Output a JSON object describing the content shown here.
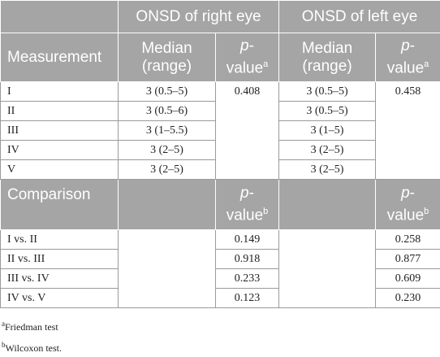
{
  "table": {
    "group_headers": [
      "ONSD of right eye",
      "ONSD of left eye"
    ],
    "sub_headers": {
      "measurement": "Measurement",
      "median": "Median (range)",
      "p_value_a": {
        "italic": "p",
        "text": "-value",
        "sup": "a"
      }
    },
    "rows": [
      [
        "I",
        "3 (0.5–5)",
        "3 (0.5–5)"
      ],
      [
        "II",
        "3 (0.5–6)",
        "3 (0.5–5)"
      ],
      [
        "III",
        "3 (1–5.5)",
        "3 (1–5)"
      ],
      [
        "IV",
        "3 (2–5)",
        "3 (2–5)"
      ],
      [
        "V",
        "3 (2–5)",
        "3 (2–5)"
      ]
    ],
    "friedman_p": [
      "0.408",
      "0.458"
    ],
    "comparison_header": {
      "label": "Comparison",
      "p_value_b": {
        "italic": "p",
        "text": "-value",
        "sup": "b"
      }
    },
    "comparisons": [
      [
        "I vs. II",
        "0.149",
        "0.258"
      ],
      [
        "II vs. III",
        "0.918",
        "0.877"
      ],
      [
        "III vs. IV",
        "0.233",
        "0.609"
      ],
      [
        "IV vs. V",
        "0.123",
        "0.230"
      ]
    ]
  },
  "footnotes": [
    {
      "mark": "a",
      "text": "Friedman test"
    },
    {
      "mark": "b",
      "text": "Wilcoxon test."
    }
  ]
}
